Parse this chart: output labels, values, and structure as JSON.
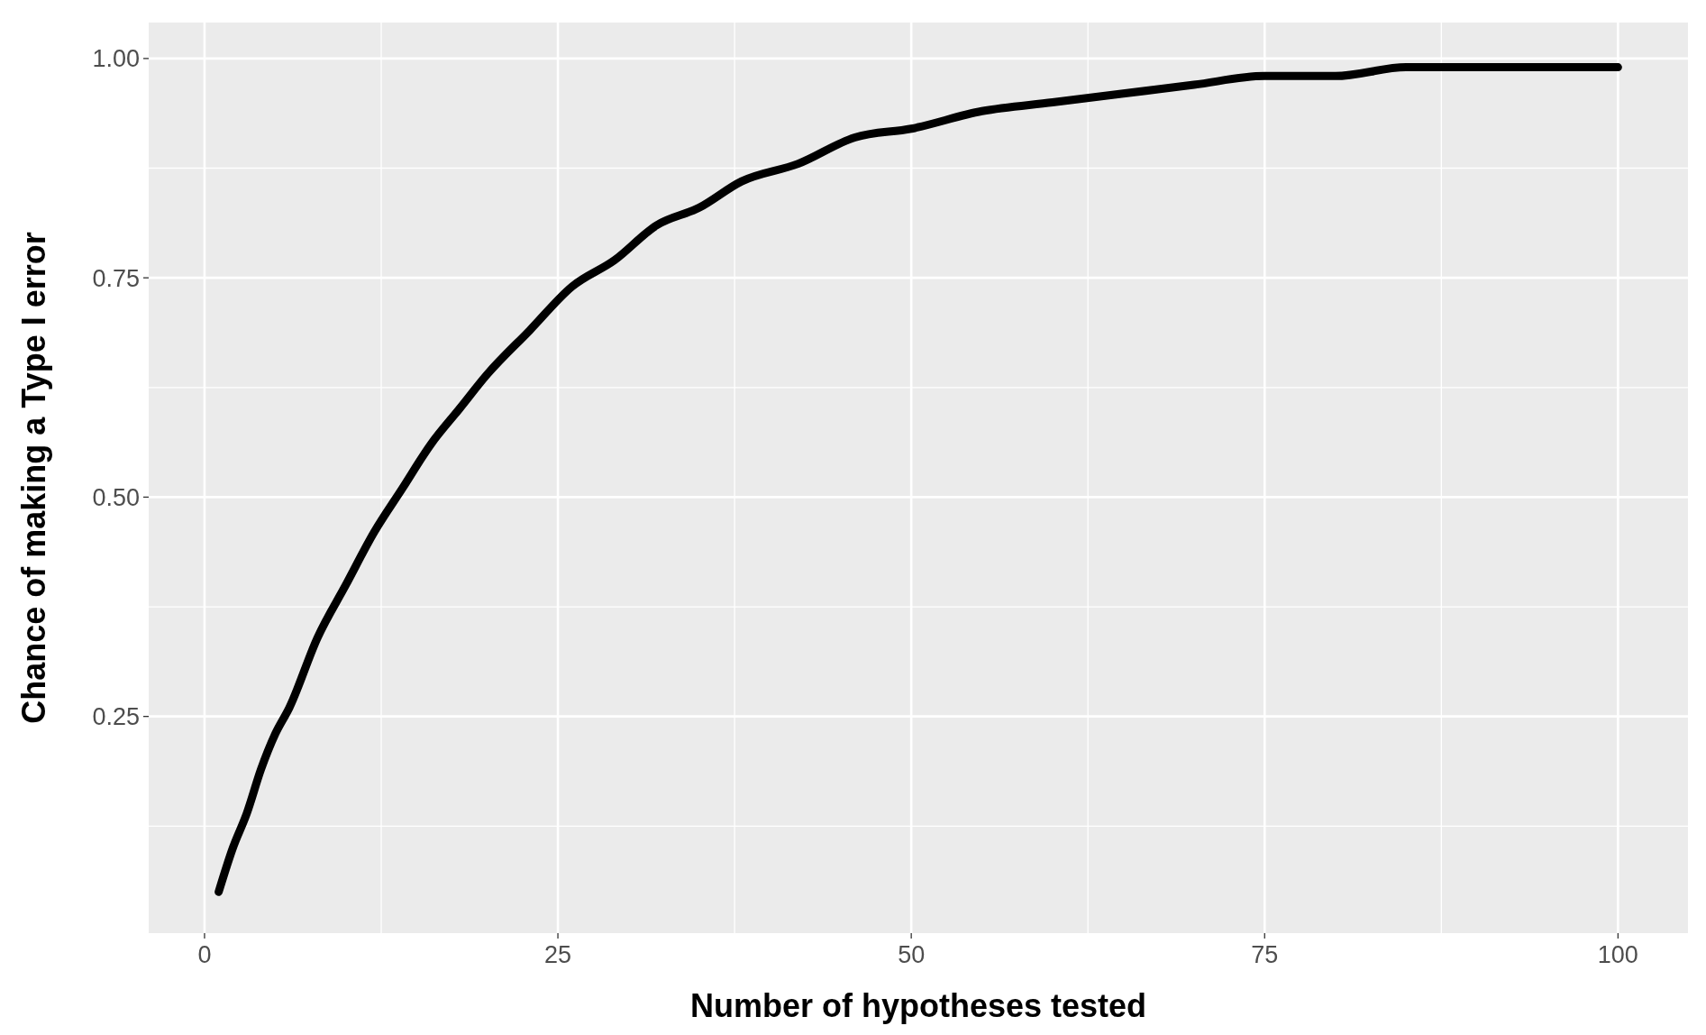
{
  "chart_data": {
    "type": "line",
    "xlabel": "Number of hypotheses tested",
    "ylabel": "Chance of making a Type I error",
    "x": [
      1,
      2,
      3,
      4,
      5,
      6,
      8,
      10,
      12,
      14,
      16,
      18,
      20,
      23,
      26,
      29,
      32,
      35,
      38,
      42,
      46,
      50,
      55,
      60,
      65,
      70,
      75,
      80,
      85,
      90,
      95,
      100
    ],
    "series": [
      {
        "color": "#000000",
        "values": [
          0.05,
          0.1,
          0.14,
          0.19,
          0.23,
          0.26,
          0.34,
          0.4,
          0.46,
          0.51,
          0.56,
          0.6,
          0.64,
          0.69,
          0.74,
          0.77,
          0.81,
          0.83,
          0.86,
          0.88,
          0.91,
          0.92,
          0.94,
          0.95,
          0.96,
          0.97,
          0.98,
          0.98,
          0.99,
          0.99,
          0.99,
          0.99
        ]
      }
    ],
    "xlim": [
      -3.95,
      104.95
    ],
    "ylim": [
      0.003,
      1.041
    ],
    "xticks": [
      0,
      25,
      50,
      75,
      100
    ],
    "yticks": [
      {
        "value": 0.25,
        "label": "0.25"
      },
      {
        "value": 0.5,
        "label": "0.50"
      },
      {
        "value": 0.75,
        "label": "0.75"
      },
      {
        "value": 1,
        "label": "1.00"
      }
    ],
    "grid": true,
    "marker": "none",
    "line_style": "solid"
  }
}
